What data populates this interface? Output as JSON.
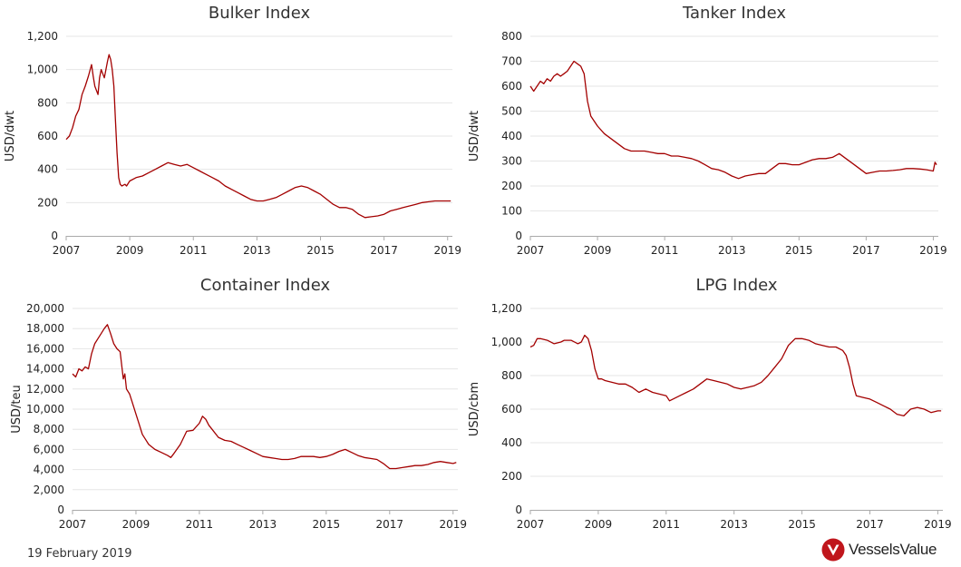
{
  "footer": {
    "date": "19 February 2019"
  },
  "brand": {
    "name": "VesselsValue",
    "icon": "vesselsvalue-logo-icon",
    "color": "#c0161c",
    "text_color": "#222222"
  },
  "style": {
    "line_color": "#a30000",
    "grid_color": "#e6e6e6",
    "axis_color": "#aaaaaa",
    "text_color": "#222222",
    "title_color": "#333333"
  },
  "chart_data": [
    {
      "type": "line",
      "title": "Bulker Index",
      "ylabel": "USD/dwt",
      "xlabel": "",
      "xlim": [
        2007,
        2019.15
      ],
      "ylim": [
        0,
        1200
      ],
      "xticks": [
        2007,
        2009,
        2011,
        2013,
        2015,
        2017,
        2019
      ],
      "yticks": [
        0,
        200,
        400,
        600,
        800,
        1000,
        1200
      ],
      "ytick_labels": [
        "0",
        "200",
        "400",
        "600",
        "800",
        "1,000",
        "1,200"
      ],
      "grid": true,
      "series": [
        {
          "x": [
            2007.0,
            2007.1,
            2007.2,
            2007.3,
            2007.4,
            2007.5,
            2007.6,
            2007.7,
            2007.8,
            2007.85,
            2007.9,
            2008.0,
            2008.05,
            2008.1,
            2008.2,
            2008.3,
            2008.35,
            2008.4,
            2008.45,
            2008.5,
            2008.55,
            2008.6,
            2008.65,
            2008.7,
            2008.75,
            2008.8,
            2008.85,
            2008.9,
            2009.0,
            2009.2,
            2009.4,
            2009.6,
            2009.8,
            2010.0,
            2010.2,
            2010.4,
            2010.6,
            2010.8,
            2011.0,
            2011.2,
            2011.4,
            2011.6,
            2011.8,
            2012.0,
            2012.2,
            2012.4,
            2012.6,
            2012.8,
            2013.0,
            2013.2,
            2013.4,
            2013.6,
            2013.8,
            2014.0,
            2014.2,
            2014.4,
            2014.6,
            2014.8,
            2015.0,
            2015.2,
            2015.4,
            2015.6,
            2015.8,
            2016.0,
            2016.2,
            2016.4,
            2016.6,
            2016.8,
            2017.0,
            2017.2,
            2017.4,
            2017.6,
            2017.8,
            2018.0,
            2018.2,
            2018.4,
            2018.6,
            2018.8,
            2019.0,
            2019.1
          ],
          "y": [
            580,
            600,
            650,
            720,
            760,
            850,
            900,
            960,
            1030,
            960,
            900,
            850,
            950,
            1000,
            950,
            1050,
            1090,
            1060,
            1000,
            900,
            700,
            500,
            350,
            310,
            300,
            305,
            310,
            300,
            330,
            350,
            360,
            380,
            400,
            420,
            440,
            430,
            420,
            430,
            410,
            390,
            370,
            350,
            330,
            300,
            280,
            260,
            240,
            220,
            210,
            210,
            220,
            230,
            250,
            270,
            290,
            300,
            290,
            270,
            250,
            220,
            190,
            170,
            170,
            160,
            130,
            110,
            115,
            120,
            130,
            150,
            160,
            170,
            180,
            190,
            200,
            205,
            210,
            210,
            210,
            210
          ]
        }
      ]
    },
    {
      "type": "line",
      "title": "Tanker Index",
      "ylabel": "USD/dwt",
      "xlabel": "",
      "xlim": [
        2007,
        2019.15
      ],
      "ylim": [
        0,
        800
      ],
      "xticks": [
        2007,
        2009,
        2011,
        2013,
        2015,
        2017,
        2019
      ],
      "yticks": [
        0,
        100,
        200,
        300,
        400,
        500,
        600,
        700,
        800
      ],
      "ytick_labels": [
        "0",
        "100",
        "200",
        "300",
        "400",
        "500",
        "600",
        "700",
        "800"
      ],
      "grid": true,
      "series": [
        {
          "x": [
            2007.0,
            2007.1,
            2007.2,
            2007.3,
            2007.4,
            2007.5,
            2007.6,
            2007.7,
            2007.8,
            2007.9,
            2008.0,
            2008.1,
            2008.2,
            2008.3,
            2008.4,
            2008.5,
            2008.6,
            2008.7,
            2008.8,
            2008.9,
            2009.0,
            2009.2,
            2009.4,
            2009.6,
            2009.8,
            2010.0,
            2010.2,
            2010.4,
            2010.6,
            2010.8,
            2011.0,
            2011.2,
            2011.4,
            2011.6,
            2011.8,
            2012.0,
            2012.2,
            2012.4,
            2012.6,
            2012.8,
            2013.0,
            2013.2,
            2013.4,
            2013.6,
            2013.8,
            2014.0,
            2014.2,
            2014.4,
            2014.6,
            2014.8,
            2015.0,
            2015.2,
            2015.4,
            2015.6,
            2015.8,
            2016.0,
            2016.2,
            2016.4,
            2016.6,
            2016.8,
            2017.0,
            2017.2,
            2017.4,
            2017.6,
            2017.8,
            2018.0,
            2018.2,
            2018.4,
            2018.6,
            2018.8,
            2019.0,
            2019.05,
            2019.1
          ],
          "y": [
            600,
            580,
            600,
            620,
            610,
            630,
            620,
            640,
            650,
            640,
            650,
            660,
            680,
            700,
            690,
            680,
            650,
            540,
            480,
            460,
            440,
            410,
            390,
            370,
            350,
            340,
            340,
            340,
            335,
            330,
            330,
            320,
            320,
            315,
            310,
            300,
            285,
            270,
            265,
            255,
            240,
            230,
            240,
            245,
            250,
            250,
            270,
            290,
            290,
            285,
            285,
            295,
            305,
            310,
            310,
            315,
            330,
            310,
            290,
            270,
            250,
            255,
            260,
            260,
            262,
            265,
            270,
            270,
            268,
            265,
            260,
            295,
            285
          ]
        }
      ]
    },
    {
      "type": "line",
      "title": "Container Index",
      "ylabel": "USD/teu",
      "xlabel": "",
      "xlim": [
        2007,
        2019.15
      ],
      "ylim": [
        0,
        20000
      ],
      "xticks": [
        2007,
        2009,
        2011,
        2013,
        2015,
        2017,
        2019
      ],
      "yticks": [
        0,
        2000,
        4000,
        6000,
        8000,
        10000,
        12000,
        14000,
        16000,
        18000,
        20000
      ],
      "ytick_labels": [
        "0",
        "2,000",
        "4,000",
        "6,000",
        "8,000",
        "10,000",
        "12,000",
        "14,000",
        "16,000",
        "18,000",
        "20,000"
      ],
      "grid": true,
      "series": [
        {
          "x": [
            2007.0,
            2007.1,
            2007.2,
            2007.3,
            2007.4,
            2007.5,
            2007.6,
            2007.7,
            2007.8,
            2007.9,
            2008.0,
            2008.1,
            2008.2,
            2008.3,
            2008.4,
            2008.5,
            2008.6,
            2008.65,
            2008.7,
            2008.8,
            2008.9,
            2009.0,
            2009.1,
            2009.2,
            2009.3,
            2009.4,
            2009.6,
            2009.8,
            2010.0,
            2010.1,
            2010.2,
            2010.4,
            2010.6,
            2010.8,
            2011.0,
            2011.1,
            2011.2,
            2011.3,
            2011.4,
            2011.6,
            2011.8,
            2012.0,
            2012.2,
            2012.4,
            2012.6,
            2012.8,
            2013.0,
            2013.2,
            2013.4,
            2013.6,
            2013.8,
            2014.0,
            2014.2,
            2014.4,
            2014.6,
            2014.8,
            2015.0,
            2015.2,
            2015.4,
            2015.6,
            2015.8,
            2016.0,
            2016.2,
            2016.4,
            2016.6,
            2016.8,
            2017.0,
            2017.2,
            2017.4,
            2017.6,
            2017.8,
            2018.0,
            2018.2,
            2018.4,
            2018.6,
            2018.8,
            2019.0,
            2019.1
          ],
          "y": [
            13500,
            13200,
            14000,
            13800,
            14200,
            14000,
            15500,
            16500,
            17000,
            17500,
            18000,
            18400,
            17500,
            16500,
            16000,
            15700,
            13000,
            13500,
            12000,
            11500,
            10500,
            9500,
            8500,
            7500,
            7000,
            6500,
            6000,
            5700,
            5400,
            5200,
            5600,
            6500,
            7800,
            7900,
            8600,
            9300,
            9000,
            8400,
            8000,
            7200,
            6900,
            6800,
            6500,
            6200,
            5900,
            5600,
            5300,
            5200,
            5100,
            5000,
            5000,
            5100,
            5300,
            5300,
            5300,
            5200,
            5300,
            5500,
            5800,
            6000,
            5700,
            5400,
            5200,
            5100,
            5000,
            4600,
            4100,
            4100,
            4200,
            4300,
            4400,
            4400,
            4500,
            4700,
            4800,
            4700,
            4600,
            4700
          ]
        }
      ]
    },
    {
      "type": "line",
      "title": "LPG Index",
      "ylabel": "USD/cbm",
      "xlabel": "",
      "xlim": [
        2007,
        2019.15
      ],
      "ylim": [
        0,
        1200
      ],
      "xticks": [
        2007,
        2009,
        2011,
        2013,
        2015,
        2017,
        2019
      ],
      "yticks": [
        0,
        200,
        400,
        600,
        800,
        1000,
        1200
      ],
      "ytick_labels": [
        "0",
        "200",
        "400",
        "600",
        "800",
        "1,000",
        "1,200"
      ],
      "grid": true,
      "series": [
        {
          "x": [
            2007.0,
            2007.1,
            2007.2,
            2007.3,
            2007.5,
            2007.7,
            2007.9,
            2008.0,
            2008.2,
            2008.4,
            2008.5,
            2008.6,
            2008.7,
            2008.8,
            2008.9,
            2009.0,
            2009.1,
            2009.2,
            2009.4,
            2009.6,
            2009.8,
            2010.0,
            2010.2,
            2010.4,
            2010.6,
            2010.8,
            2011.0,
            2011.1,
            2011.2,
            2011.4,
            2011.6,
            2011.8,
            2012.0,
            2012.2,
            2012.4,
            2012.6,
            2012.8,
            2013.0,
            2013.2,
            2013.4,
            2013.6,
            2013.8,
            2014.0,
            2014.2,
            2014.4,
            2014.6,
            2014.8,
            2015.0,
            2015.2,
            2015.4,
            2015.6,
            2015.8,
            2016.0,
            2016.2,
            2016.3,
            2016.4,
            2016.5,
            2016.6,
            2016.8,
            2017.0,
            2017.2,
            2017.4,
            2017.6,
            2017.8,
            2018.0,
            2018.2,
            2018.4,
            2018.6,
            2018.8,
            2019.0,
            2019.1
          ],
          "y": [
            970,
            980,
            1020,
            1020,
            1010,
            990,
            1000,
            1010,
            1010,
            990,
            1000,
            1040,
            1020,
            950,
            840,
            780,
            780,
            770,
            760,
            750,
            750,
            730,
            700,
            720,
            700,
            690,
            680,
            650,
            660,
            680,
            700,
            720,
            750,
            780,
            770,
            760,
            750,
            730,
            720,
            730,
            740,
            760,
            800,
            850,
            900,
            980,
            1020,
            1020,
            1010,
            990,
            980,
            970,
            970,
            950,
            920,
            850,
            750,
            680,
            670,
            660,
            640,
            620,
            600,
            570,
            560,
            600,
            610,
            600,
            580,
            590,
            590
          ]
        }
      ]
    }
  ]
}
